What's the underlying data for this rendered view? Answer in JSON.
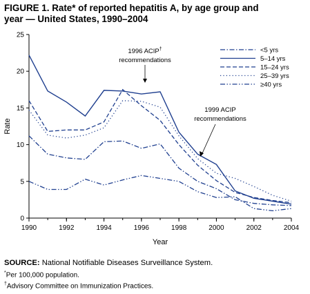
{
  "figure": {
    "title_line1": "FIGURE 1. Rate* of reported hepatitis A, by age group and",
    "title_line2": "year — United States, 1990–2004"
  },
  "chart_data": {
    "type": "line",
    "x": [
      1990,
      1991,
      1992,
      1993,
      1994,
      1995,
      1996,
      1997,
      1998,
      1999,
      2000,
      2001,
      2002,
      2003,
      2004
    ],
    "xlim": [
      1990,
      2004
    ],
    "ylim": [
      0,
      25
    ],
    "xticks": [
      1990,
      1992,
      1994,
      1996,
      1998,
      2000,
      2002,
      2004
    ],
    "yticks": [
      0,
      5,
      10,
      15,
      20,
      25
    ],
    "xlabel": "Year",
    "ylabel": "Rate",
    "grid": false,
    "legend_position": "top-right",
    "series": [
      {
        "name": "<5 yrs",
        "style": "dashdot",
        "values": [
          11.2,
          8.7,
          8.2,
          8.0,
          10.4,
          10.5,
          9.5,
          10.1,
          6.8,
          5.0,
          4.0,
          2.5,
          2.0,
          1.8,
          1.7
        ]
      },
      {
        "name": "5–14 yrs",
        "style": "solid",
        "values": [
          22.2,
          17.3,
          15.8,
          13.9,
          17.4,
          17.3,
          16.9,
          17.2,
          11.7,
          8.7,
          7.3,
          3.7,
          2.7,
          2.3,
          1.9
        ]
      },
      {
        "name": "15–24 yrs",
        "style": "dashed",
        "values": [
          16.0,
          11.8,
          12.0,
          12.0,
          13.1,
          17.5,
          15.3,
          13.3,
          10.0,
          7.2,
          5.1,
          3.5,
          2.8,
          2.4,
          2.1
        ]
      },
      {
        "name": "25–39 yrs",
        "style": "dotted",
        "values": [
          14.7,
          11.3,
          10.9,
          11.3,
          12.3,
          16.0,
          15.9,
          15.1,
          11.2,
          8.1,
          6.1,
          5.4,
          4.3,
          3.1,
          2.3
        ]
      },
      {
        "name": "≥40 yrs",
        "style": "dashdotdot",
        "values": [
          5.0,
          3.9,
          3.9,
          5.3,
          4.5,
          5.2,
          5.8,
          5.4,
          5.0,
          3.6,
          2.8,
          2.9,
          1.3,
          1.0,
          1.3
        ]
      }
    ],
    "annotations": [
      {
        "lines": [
          "1996 ACIP",
          "recommendations"
        ],
        "mark": "†"
      },
      {
        "lines": [
          "1999 ACIP",
          "recommendations"
        ]
      }
    ]
  },
  "footer": {
    "source_label": "SOURCE:",
    "source_text": "National Notifiable Diseases Surveillance System.",
    "note_star_mark": "*",
    "note_star": "Per 100,000 population.",
    "note_dagger_mark": "†",
    "note_dagger": "Advisory Committee on Immunization Practices."
  },
  "colors": {
    "line": "#1f3f8f",
    "axis": "#000000",
    "text": "#000000"
  }
}
